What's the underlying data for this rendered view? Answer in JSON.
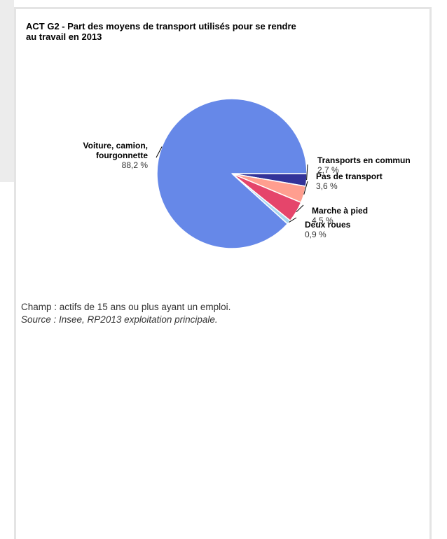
{
  "chart_data": {
    "type": "pie",
    "title": "ACT G2 - Part des moyens de transport utilisés pour se rendre au travail en 2013",
    "slices": [
      {
        "name_lines": [
          "Transports en commun"
        ],
        "value": 2.7,
        "label": "2,7 %",
        "color": "#333399"
      },
      {
        "name_lines": [
          "Pas de transport"
        ],
        "value": 3.6,
        "label": "3,6 %",
        "color": "#ff9e8f"
      },
      {
        "name_lines": [
          "Marche à pied"
        ],
        "value": 4.5,
        "label": "4,5 %",
        "color": "#e5456b"
      },
      {
        "name_lines": [
          "Deux roues"
        ],
        "value": 0.9,
        "label": "0,9 %",
        "color": "#a8d8f0"
      },
      {
        "name_lines": [
          "Voiture, camion,",
          "fourgonnette"
        ],
        "value": 88.2,
        "label": "88,2 %",
        "color": "#6688e8"
      }
    ]
  },
  "notes": {
    "champ": "Champ : actifs de 15 ans ou plus ayant un emploi.",
    "source": "Source : Insee, RP2013 exploitation principale."
  }
}
